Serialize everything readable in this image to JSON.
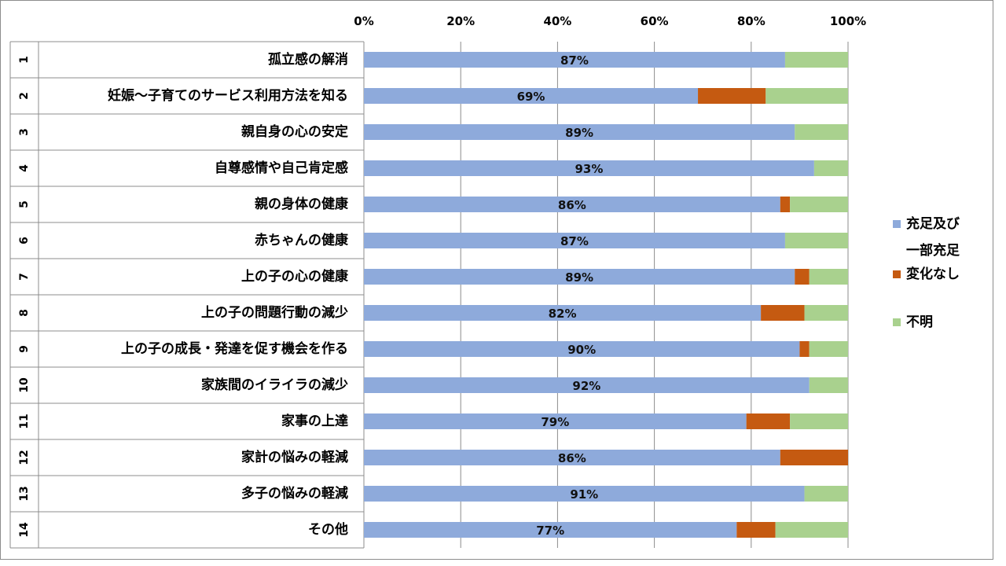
{
  "chart_data": {
    "type": "bar",
    "orientation": "horizontal",
    "stacked": "percent",
    "categories": [
      {
        "num": "1",
        "label": "孤立感の解消"
      },
      {
        "num": "2",
        "label": "妊娠～子育てのサービス利用方法を知る"
      },
      {
        "num": "3",
        "label": "親自身の心の安定"
      },
      {
        "num": "4",
        "label": "自尊感情や自己肯定感"
      },
      {
        "num": "5",
        "label": "親の身体の健康"
      },
      {
        "num": "6",
        "label": "赤ちゃんの健康"
      },
      {
        "num": "7",
        "label": "上の子の心の健康"
      },
      {
        "num": "8",
        "label": "上の子の問題行動の減少"
      },
      {
        "num": "9",
        "label": "上の子の成長・発達を促す機会を作る"
      },
      {
        "num": "10",
        "label": "家族間のイライラの減少"
      },
      {
        "num": "11",
        "label": "家事の上達"
      },
      {
        "num": "12",
        "label": "家計の悩みの軽減"
      },
      {
        "num": "13",
        "label": "多子の悩みの軽減"
      },
      {
        "num": "14",
        "label": "その他"
      }
    ],
    "series": [
      {
        "name": "充足及び一部充足",
        "color": "#8eaadb",
        "values": [
          87,
          69,
          89,
          93,
          86,
          87,
          89,
          82,
          90,
          92,
          79,
          86,
          91,
          77
        ],
        "data_labels": [
          "87%",
          "69%",
          "89%",
          "93%",
          "86%",
          "87%",
          "89%",
          "82%",
          "90%",
          "92%",
          "79%",
          "86%",
          "91%",
          "77%"
        ]
      },
      {
        "name": "変化なし",
        "color": "#c55a11",
        "values": [
          0,
          14,
          0,
          0,
          2,
          0,
          3,
          9,
          2,
          0,
          9,
          14,
          0,
          8
        ]
      },
      {
        "name": "不明",
        "color": "#a9d18e",
        "values": [
          13,
          17,
          11,
          7,
          12,
          13,
          8,
          9,
          8,
          8,
          12,
          0,
          9,
          15
        ]
      }
    ],
    "x_ticks": [
      "0%",
      "20%",
      "40%",
      "60%",
      "80%",
      "100%"
    ],
    "xlim": [
      0,
      100
    ],
    "legend": {
      "position": "right",
      "lines": [
        [
          "充足及び",
          "一部充足"
        ],
        [
          "変化なし"
        ],
        [
          "不明"
        ]
      ]
    },
    "title": "",
    "xlabel": "",
    "ylabel": ""
  }
}
